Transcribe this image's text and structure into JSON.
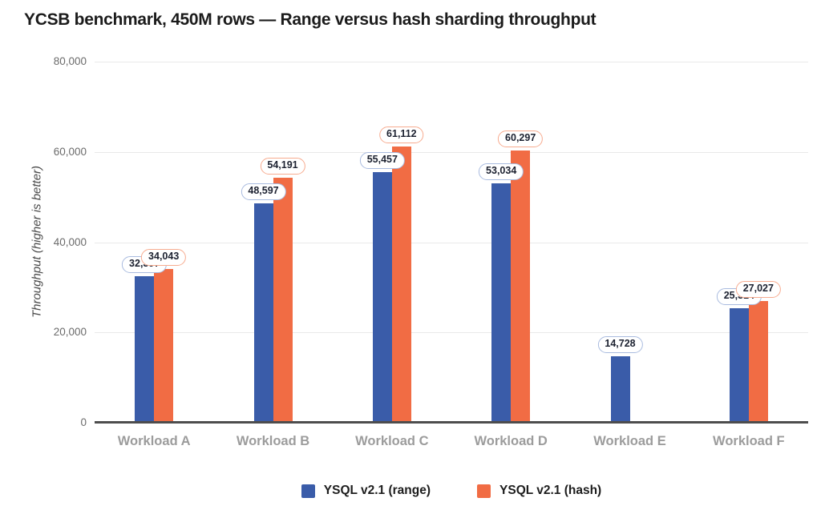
{
  "page": {
    "background": "#ffffff"
  },
  "chart_data": {
    "type": "bar",
    "title": "YCSB benchmark, 450M rows — Range versus hash sharding throughput",
    "ylabel": "Throughput (higher is better)",
    "xlabel": "",
    "categories": [
      "Workload A",
      "Workload B",
      "Workload C",
      "Workload D",
      "Workload E",
      "Workload F"
    ],
    "series": [
      {
        "name": "YSQL v2.1 (range)",
        "color": "#3A5CA9",
        "pill_border": "#A9BBDF",
        "values": [
          32397,
          48597,
          55457,
          53034,
          14728,
          25314
        ],
        "labels": [
          "32,397",
          "48,597",
          "55,457",
          "53,034",
          "14,728",
          "25,314"
        ]
      },
      {
        "name": "YSQL v2.1 (hash)",
        "color": "#F16C44",
        "pill_border": "#F7AB8F",
        "values": [
          34043,
          54191,
          61112,
          60297,
          null,
          27027
        ],
        "labels": [
          "34,043",
          "54,191",
          "61,112",
          "60,297",
          null,
          "27,027"
        ]
      }
    ],
    "ylim": [
      0,
      80000
    ],
    "yticks": [
      0,
      20000,
      40000,
      60000,
      80000
    ],
    "ytick_labels": [
      "0",
      "20,000",
      "40,000",
      "60,000",
      "80,000"
    ],
    "grid": true,
    "legend_position": "bottom",
    "colors": {
      "grid": "#e9e9e9",
      "axis_line": "#4d4d4d",
      "tick_label": "#6b6b6b",
      "category_label": "#9c9c9c",
      "value_label_text": "#1c2130",
      "title_text": "#1b1b1b"
    }
  }
}
